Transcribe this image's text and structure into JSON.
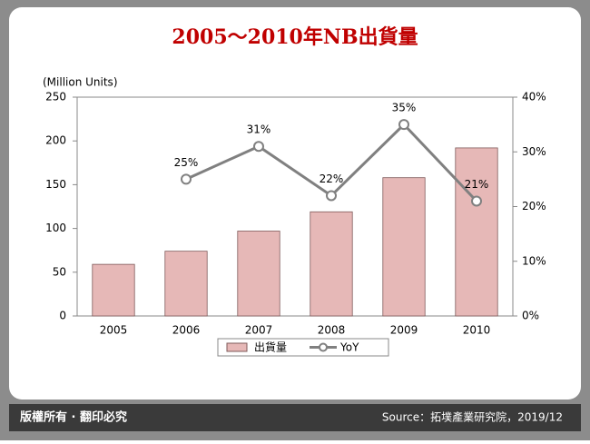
{
  "chart_data": {
    "type": "bar-line",
    "title": "2005～2010年NB出貨量",
    "y_label": "(Million Units)",
    "categories": [
      "2005",
      "2006",
      "2007",
      "2008",
      "2009",
      "2010"
    ],
    "series": [
      {
        "name": "出貨量",
        "type": "bar",
        "color": "#e6b8b7",
        "values": [
          59,
          74,
          97,
          119,
          158,
          192
        ]
      },
      {
        "name": "YoY",
        "type": "line",
        "axis": "y2",
        "color": "#808080",
        "values": [
          null,
          25,
          31,
          22,
          35,
          21
        ],
        "value_labels": [
          null,
          "25%",
          "31%",
          "22%",
          "35%",
          "21%"
        ]
      }
    ],
    "ylim": [
      0,
      250
    ],
    "yticks": [
      0,
      50,
      100,
      150,
      200,
      250
    ],
    "y2lim": [
      0,
      40
    ],
    "y2ticks": [
      {
        "value": 0,
        "label": "0%"
      },
      {
        "value": 10,
        "label": "10%"
      },
      {
        "value": 20,
        "label": "20%"
      },
      {
        "value": 30,
        "label": "30%"
      },
      {
        "value": 40,
        "label": "40%"
      }
    ],
    "legend": "bottom"
  },
  "footer": {
    "left": "版權所有 · 翻印必究",
    "right": "Source：拓墣產業研究院，2019/12"
  }
}
